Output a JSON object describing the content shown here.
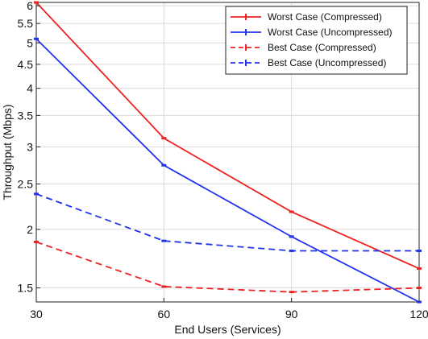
{
  "chart_data": {
    "type": "line",
    "title": "",
    "xlabel": "End Users (Services)",
    "ylabel": "Throughput (Mbps)",
    "x": [
      30,
      60,
      90,
      120
    ],
    "x_ticks": [
      30,
      60,
      90,
      120
    ],
    "y_ticks": [
      1.5,
      2,
      2.5,
      3,
      3.5,
      4,
      4.5,
      5,
      5.5,
      6
    ],
    "y_tick_labels": [
      "1.5",
      "2",
      "2.5",
      "3",
      "3.5",
      "4",
      "4.5",
      "5",
      "5.5",
      "6"
    ],
    "xlim": [
      30,
      120
    ],
    "ylim": [
      1.4,
      6.1
    ],
    "y_scale": "log",
    "grid": true,
    "legend_position": "top-right",
    "series": [
      {
        "name": "Worst Case (Compressed)",
        "values": [
          6.1,
          3.13,
          2.18,
          1.65
        ],
        "color": "#ee2222",
        "dash": "solid"
      },
      {
        "name": "Worst Case (Uncompressed)",
        "values": [
          5.1,
          2.74,
          1.93,
          1.4
        ],
        "color": "#2233ee",
        "dash": "solid"
      },
      {
        "name": "Best Case (Compressed)",
        "values": [
          1.88,
          1.51,
          1.47,
          1.5
        ],
        "color": "#ee2222",
        "dash": "dashed"
      },
      {
        "name": "Best Case (Uncompressed)",
        "values": [
          2.38,
          1.89,
          1.8,
          1.8
        ],
        "color": "#2233ee",
        "dash": "dashed"
      }
    ]
  }
}
